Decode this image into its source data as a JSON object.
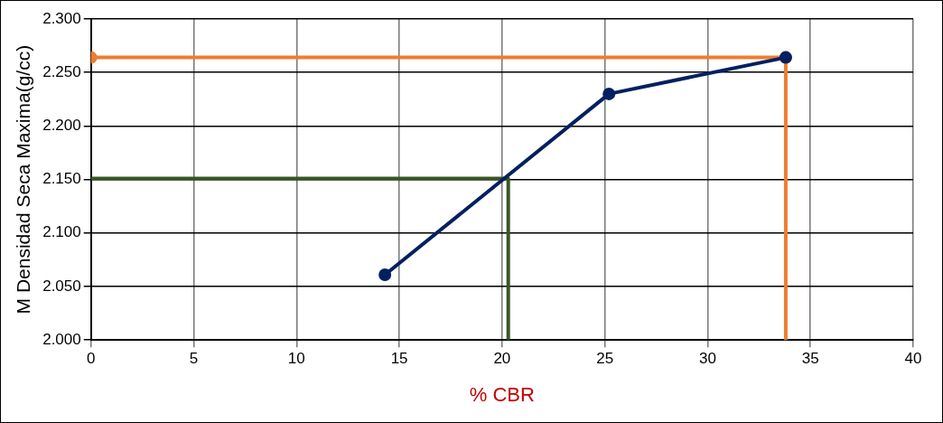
{
  "chart_data": {
    "type": "line",
    "xlabel": "% CBR",
    "ylabel": "M Densidad Seca Maxima(g/cc)",
    "xlim": [
      0,
      40
    ],
    "xticks": [
      0,
      5,
      10,
      15,
      20,
      25,
      30,
      35,
      40
    ],
    "ylim": [
      2.0,
      2.3
    ],
    "yticks": [
      {
        "value": 2.0,
        "label": "2.000"
      },
      {
        "value": 2.05,
        "label": "2.050"
      },
      {
        "value": 2.1,
        "label": "2.100"
      },
      {
        "value": 2.15,
        "label": "2.150"
      },
      {
        "value": 2.2,
        "label": "2.200"
      },
      {
        "value": 2.25,
        "label": "2.250"
      },
      {
        "value": 2.3,
        "label": "2.300"
      }
    ],
    "grid": true,
    "legend": false,
    "line_style": "solid",
    "series": [
      {
        "color": "#002060",
        "x": [
          14.3,
          25.2,
          33.8
        ],
        "values": [
          2.061,
          2.23,
          2.264
        ],
        "marker": "circle"
      },
      {
        "color": "#375623",
        "x": [
          0,
          20.3,
          20.3
        ],
        "values": [
          2.151,
          2.151,
          2.0
        ],
        "marker": "none"
      },
      {
        "color": "#ed7d31",
        "x": [
          33.8,
          33.8
        ],
        "values": [
          2.264,
          2.0
        ]
      },
      {
        "color": "#ed7d31",
        "x": [
          0,
          33.8
        ],
        "values": [
          2.264,
          2.264
        ],
        "marker": "circle"
      }
    ]
  }
}
